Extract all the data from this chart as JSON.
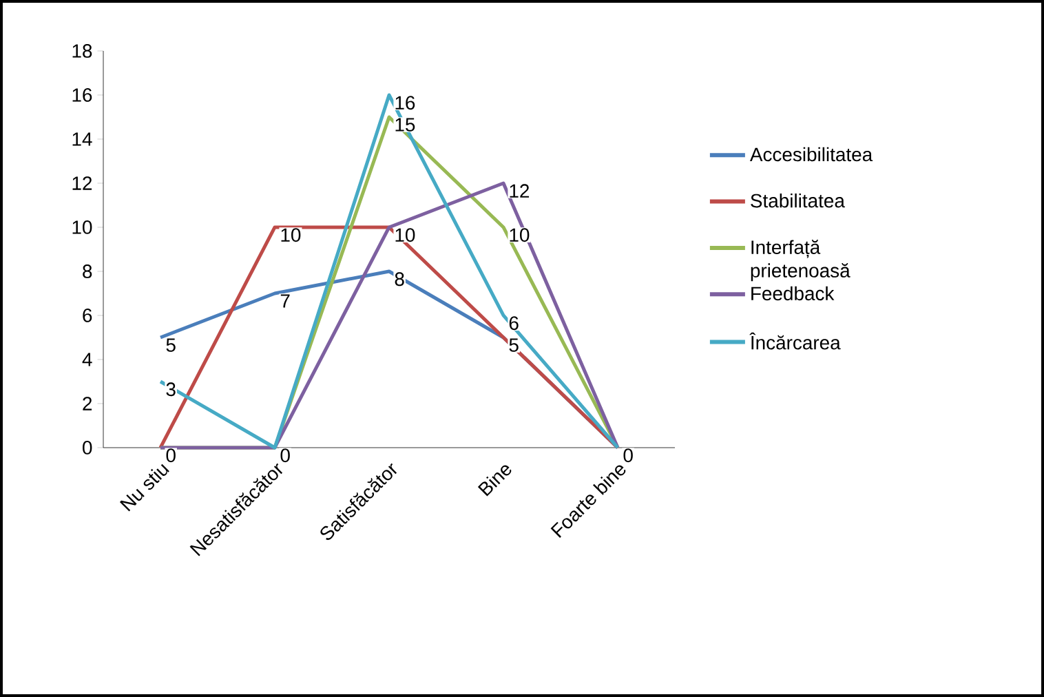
{
  "chart_data": {
    "type": "line",
    "categories": [
      "Nu stiu",
      "Nesatisfăcător",
      "Satisfăcător",
      "Bine",
      "Foarte bine"
    ],
    "series": [
      {
        "name": "Accesibilitatea",
        "color": "#4a7ebb",
        "values": [
          5,
          7,
          8,
          5,
          0
        ],
        "value_labels": [
          "5",
          "7",
          "8",
          "5",
          "0"
        ]
      },
      {
        "name": "Stabilitatea",
        "color": "#be4b48",
        "values": [
          0,
          10,
          10,
          5,
          0
        ],
        "value_labels": [
          "0",
          "10",
          "10",
          null,
          null
        ]
      },
      {
        "name": "Interfață prietenoasă",
        "color": "#98b954",
        "values": [
          0,
          0,
          15,
          10,
          0
        ],
        "value_labels": [
          null,
          "0",
          "15",
          "10",
          null
        ]
      },
      {
        "name": "Feedback",
        "color": "#7d60a0",
        "values": [
          0,
          0,
          10,
          12,
          0
        ],
        "value_labels": [
          null,
          null,
          null,
          "12",
          null
        ]
      },
      {
        "name": "Încărcarea",
        "color": "#46aac5",
        "values": [
          3,
          0,
          16,
          6,
          0
        ],
        "value_labels": [
          "3",
          null,
          "16",
          "6",
          null
        ]
      }
    ],
    "ylim": [
      0,
      18
    ],
    "yticks": [
      0,
      2,
      4,
      6,
      8,
      10,
      12,
      14,
      16,
      18
    ],
    "grid": false,
    "legend": "right",
    "marker": "none",
    "line_style": "solid"
  }
}
